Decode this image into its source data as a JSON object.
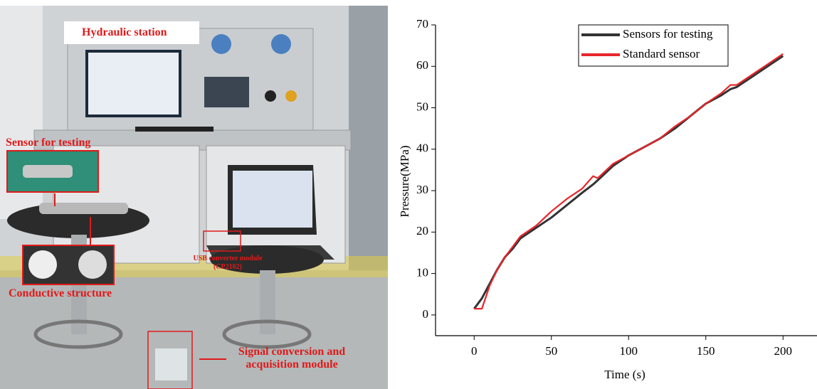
{
  "photo": {
    "labels": [
      "Hydraulic station",
      "Sensor for testing",
      "Conductive structure",
      "USB converter module (CP2102)",
      "Signal conversion and acquisition module"
    ]
  },
  "chart_data": {
    "type": "line",
    "xlabel": "Time (s)",
    "ylabel": "Pressure(MPa)",
    "x": [
      0,
      5,
      10,
      15,
      20,
      25,
      30,
      40,
      50,
      60,
      70,
      77,
      80,
      90,
      100,
      110,
      120,
      130,
      140,
      150,
      160,
      166,
      170,
      180,
      190,
      200
    ],
    "series": [
      {
        "name": "Sensors for testing",
        "color": "#333333",
        "values": [
          1.5,
          4,
          7.5,
          11,
          14,
          16,
          18.5,
          21,
          23.5,
          26.5,
          29.5,
          31.5,
          32.5,
          36,
          38.5,
          40.5,
          42.5,
          45,
          48,
          51,
          53,
          54.5,
          55,
          57.5,
          60,
          62.5
        ]
      },
      {
        "name": "Standard sensor",
        "color": "#e8262b",
        "values": [
          1.5,
          1.5,
          7,
          11,
          14,
          16.5,
          19,
          21.5,
          25,
          28,
          30.5,
          33.5,
          33,
          36.5,
          38.5,
          40.5,
          42.5,
          45.5,
          48,
          51,
          53.5,
          55.5,
          55.5,
          58,
          60.5,
          63
        ]
      }
    ],
    "xlim": [
      -25,
      222
    ],
    "ylim": [
      -5,
      70
    ],
    "xticks": [
      0,
      50,
      100,
      150,
      200
    ],
    "yticks": [
      0,
      10,
      20,
      30,
      40,
      50,
      60,
      70
    ],
    "legend": "top"
  }
}
